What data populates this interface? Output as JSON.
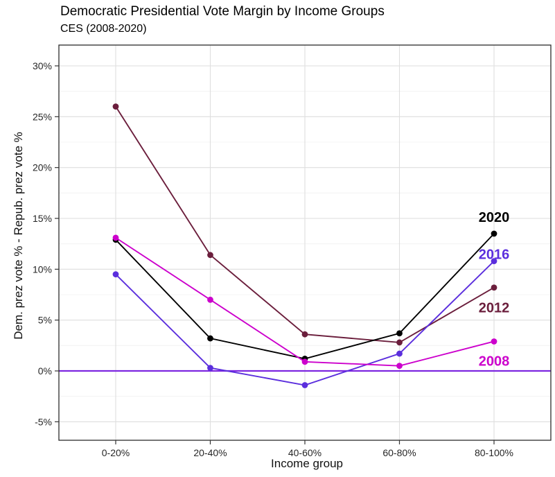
{
  "header": {
    "title": "Democratic Presidential Vote Margin by Income Groups",
    "subtitle": "CES (2008-2020)"
  },
  "chart_data": {
    "type": "line",
    "title": "Democratic Presidential Vote Margin by Income Groups",
    "subtitle": "CES (2008-2020)",
    "xlabel": "Income group",
    "ylabel": "Dem. prez vote % - Repub. prez vote %",
    "categories": [
      "0-20%",
      "20-40%",
      "40-60%",
      "60-80%",
      "80-100%"
    ],
    "series": [
      {
        "name": "2012",
        "color": "#6B1E3C",
        "values": [
          26.0,
          11.4,
          3.6,
          2.8,
          8.2
        ],
        "label_dy": 29
      },
      {
        "name": "2016",
        "color": "#5B2EDD",
        "values": [
          9.5,
          0.3,
          -1.4,
          1.7,
          10.8
        ],
        "label_dy": -10
      },
      {
        "name": "2020",
        "color": "#000000",
        "values": [
          12.9,
          3.2,
          1.2,
          3.7,
          13.5
        ],
        "label_dy": -24
      },
      {
        "name": "2008",
        "color": "#CC00CC",
        "values": [
          13.1,
          7.0,
          0.9,
          0.5,
          2.9
        ],
        "label_dy": 28
      }
    ],
    "y_ticks": [
      -5,
      0,
      5,
      10,
      15,
      20,
      25,
      30
    ],
    "y_tick_labels": [
      "-5%",
      "0%",
      "5%",
      "10%",
      "15%",
      "20%",
      "25%",
      "30%"
    ],
    "y_minor_ticks": [
      -2.5,
      2.5,
      7.5,
      12.5,
      17.5,
      22.5,
      27.5
    ],
    "ylim": [
      -6.8,
      32.1
    ],
    "zero_line": {
      "y": 0,
      "color": "#7D26E0"
    },
    "grid": {
      "major_color": "#DEDEDE",
      "minor_color": "#F0F0F0"
    },
    "legend_position": "direct-labels-right"
  }
}
